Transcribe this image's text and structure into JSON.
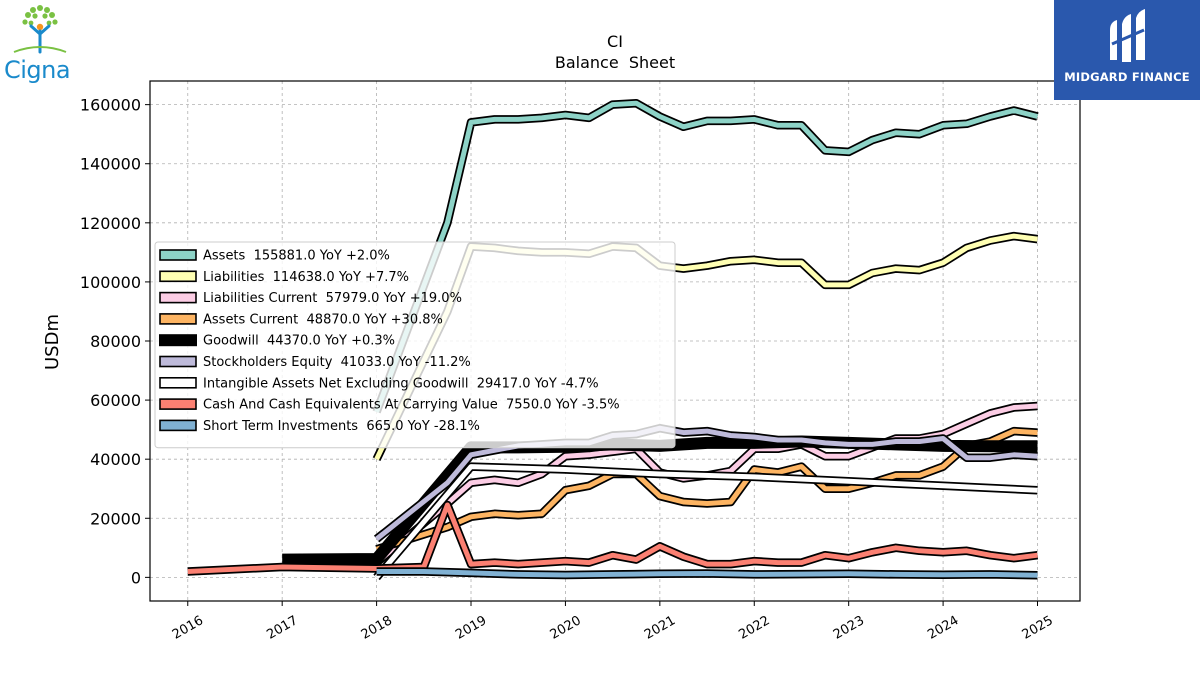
{
  "logos": {
    "left": {
      "text": "Cigna"
    },
    "right": {
      "text": "MIDGARD FINANCE"
    }
  },
  "chart_data": {
    "type": "line",
    "title": "CI",
    "subtitle": "Balance  Sheet",
    "xlabel": "",
    "ylabel": "USDm",
    "xlim": [
      2015.6,
      2025.45
    ],
    "ylim": [
      -8000,
      168000
    ],
    "xticks": [
      2016,
      2017,
      2018,
      2019,
      2020,
      2021,
      2022,
      2023,
      2024,
      2025
    ],
    "yticks": [
      0,
      20000,
      40000,
      60000,
      80000,
      100000,
      120000,
      140000,
      160000
    ],
    "grid": true,
    "legend_position": "center-left",
    "series": [
      {
        "name": "Assets",
        "legend": "Assets  155881.0 YoY +2.0%",
        "color": "#8dd3c7",
        "points": [
          [
            2018.0,
            56000
          ],
          [
            2018.75,
            120000
          ],
          [
            2019.0,
            154000
          ],
          [
            2019.25,
            155000
          ],
          [
            2019.5,
            155000
          ],
          [
            2019.75,
            155500
          ],
          [
            2020.0,
            156500
          ],
          [
            2020.25,
            155500
          ],
          [
            2020.5,
            160000
          ],
          [
            2020.75,
            160500
          ],
          [
            2021.0,
            156000
          ],
          [
            2021.25,
            152500
          ],
          [
            2021.5,
            154500
          ],
          [
            2021.75,
            154500
          ],
          [
            2022.0,
            155000
          ],
          [
            2022.25,
            153000
          ],
          [
            2022.5,
            153000
          ],
          [
            2022.75,
            144500
          ],
          [
            2023.0,
            144000
          ],
          [
            2023.25,
            148000
          ],
          [
            2023.5,
            150500
          ],
          [
            2023.75,
            150000
          ],
          [
            2024.0,
            153000
          ],
          [
            2024.25,
            153500
          ],
          [
            2024.5,
            156000
          ],
          [
            2024.75,
            158000
          ],
          [
            2025.0,
            156000
          ]
        ]
      },
      {
        "name": "Liabilities",
        "legend": "Liabilities  114638.0 YoY +7.7%",
        "color": "#ffffb3",
        "points": [
          [
            2018.0,
            40000
          ],
          [
            2018.75,
            90000
          ],
          [
            2019.0,
            112000
          ],
          [
            2019.25,
            111500
          ],
          [
            2019.5,
            110500
          ],
          [
            2019.75,
            110000
          ],
          [
            2020.0,
            110000
          ],
          [
            2020.25,
            109500
          ],
          [
            2020.5,
            112000
          ],
          [
            2020.75,
            111500
          ],
          [
            2021.0,
            105500
          ],
          [
            2021.25,
            104500
          ],
          [
            2021.5,
            105500
          ],
          [
            2021.75,
            107000
          ],
          [
            2022.0,
            107500
          ],
          [
            2022.25,
            106500
          ],
          [
            2022.5,
            106500
          ],
          [
            2022.75,
            99000
          ],
          [
            2023.0,
            99000
          ],
          [
            2023.25,
            103000
          ],
          [
            2023.5,
            104500
          ],
          [
            2023.75,
            104000
          ],
          [
            2024.0,
            106500
          ],
          [
            2024.25,
            111500
          ],
          [
            2024.5,
            114000
          ],
          [
            2024.75,
            115500
          ],
          [
            2025.0,
            114500
          ]
        ]
      },
      {
        "name": "Liabilities Current",
        "legend": "Liabilities Current  57979.0 YoY +19.0%",
        "color": "#fccde5",
        "points": [
          [
            2018.0,
            5000
          ],
          [
            2018.75,
            25000
          ],
          [
            2019.0,
            32000
          ],
          [
            2019.25,
            33000
          ],
          [
            2019.5,
            32000
          ],
          [
            2019.75,
            35000
          ],
          [
            2020.0,
            41000
          ],
          [
            2020.25,
            41500
          ],
          [
            2020.5,
            42500
          ],
          [
            2020.75,
            43500
          ],
          [
            2021.0,
            35500
          ],
          [
            2021.25,
            33500
          ],
          [
            2021.5,
            34500
          ],
          [
            2021.75,
            36000
          ],
          [
            2022.0,
            43500
          ],
          [
            2022.25,
            43500
          ],
          [
            2022.5,
            45000
          ],
          [
            2022.75,
            41000
          ],
          [
            2023.0,
            41000
          ],
          [
            2023.25,
            44000
          ],
          [
            2023.5,
            47000
          ],
          [
            2023.75,
            47000
          ],
          [
            2024.0,
            48500
          ],
          [
            2024.25,
            52000
          ],
          [
            2024.5,
            55500
          ],
          [
            2024.75,
            57500
          ],
          [
            2025.0,
            58000
          ]
        ]
      },
      {
        "name": "Assets Current",
        "legend": "Assets Current  48870.0 YoY +30.8%",
        "color": "#fdb462",
        "points": [
          [
            2018.0,
            9500
          ],
          [
            2018.75,
            17000
          ],
          [
            2019.0,
            20500
          ],
          [
            2019.25,
            21500
          ],
          [
            2019.5,
            21000
          ],
          [
            2019.75,
            21500
          ],
          [
            2020.0,
            29500
          ],
          [
            2020.25,
            31000
          ],
          [
            2020.5,
            35000
          ],
          [
            2020.75,
            35000
          ],
          [
            2021.0,
            27500
          ],
          [
            2021.25,
            25500
          ],
          [
            2021.5,
            25000
          ],
          [
            2021.75,
            25500
          ],
          [
            2022.0,
            36500
          ],
          [
            2022.25,
            35500
          ],
          [
            2022.5,
            37500
          ],
          [
            2022.75,
            30000
          ],
          [
            2023.0,
            30000
          ],
          [
            2023.25,
            32000
          ],
          [
            2023.5,
            34500
          ],
          [
            2023.75,
            34500
          ],
          [
            2024.0,
            37500
          ],
          [
            2024.25,
            44500
          ],
          [
            2024.5,
            46000
          ],
          [
            2024.75,
            49500
          ],
          [
            2025.0,
            49000
          ]
        ]
      },
      {
        "name": "Goodwill",
        "legend": "Goodwill  44370.0 YoY +0.3%",
        "color": "#000000",
        "points": [
          [
            2017.0,
            6000
          ],
          [
            2018.0,
            6200
          ],
          [
            2019.0,
            44000
          ],
          [
            2019.5,
            44000
          ],
          [
            2020.0,
            44200
          ],
          [
            2020.5,
            45000
          ],
          [
            2021.0,
            44500
          ],
          [
            2021.5,
            45500
          ],
          [
            2022.0,
            45500
          ],
          [
            2022.5,
            46000
          ],
          [
            2023.0,
            45500
          ],
          [
            2023.5,
            45000
          ],
          [
            2024.0,
            44500
          ],
          [
            2024.5,
            44400
          ],
          [
            2025.0,
            44400
          ]
        ]
      },
      {
        "name": "Stockholders Equity",
        "legend": "Stockholders Equity  41033.0 YoY -11.2%",
        "color": "#bebada",
        "points": [
          [
            2018.0,
            13000
          ],
          [
            2018.75,
            32000
          ],
          [
            2019.0,
            41500
          ],
          [
            2019.25,
            43000
          ],
          [
            2019.5,
            44500
          ],
          [
            2019.75,
            45000
          ],
          [
            2020.0,
            45500
          ],
          [
            2020.25,
            45500
          ],
          [
            2020.5,
            48000
          ],
          [
            2020.75,
            48500
          ],
          [
            2021.0,
            50500
          ],
          [
            2021.25,
            49000
          ],
          [
            2021.5,
            49500
          ],
          [
            2021.75,
            48000
          ],
          [
            2022.0,
            47500
          ],
          [
            2022.25,
            46500
          ],
          [
            2022.5,
            46500
          ],
          [
            2022.75,
            45500
          ],
          [
            2023.0,
            45000
          ],
          [
            2023.25,
            45000
          ],
          [
            2023.5,
            46000
          ],
          [
            2023.75,
            46000
          ],
          [
            2024.0,
            47000
          ],
          [
            2024.25,
            40500
          ],
          [
            2024.5,
            40500
          ],
          [
            2024.75,
            41500
          ],
          [
            2025.0,
            41000
          ]
        ]
      },
      {
        "name": "Intangible Assets Net Excluding Goodwill",
        "legend": "Intangible Assets Net Excluding Goodwill  29417.0 YoY -4.7%",
        "color": "#ffffff",
        "points": [
          [
            2018.0,
            0
          ],
          [
            2019.0,
            37500
          ],
          [
            2020.0,
            36500
          ],
          [
            2021.0,
            35000
          ],
          [
            2022.0,
            34000
          ],
          [
            2023.0,
            32500
          ],
          [
            2024.0,
            31000
          ],
          [
            2025.0,
            29500
          ]
        ]
      },
      {
        "name": "Cash And Cash Equivalents At Carrying Value",
        "legend": "Cash And Cash Equivalents At Carrying Value  7550.0 YoY -3.5%",
        "color": "#fb8072",
        "points": [
          [
            2016.0,
            2000
          ],
          [
            2017.0,
            3500
          ],
          [
            2018.0,
            3000
          ],
          [
            2018.5,
            3500
          ],
          [
            2018.75,
            24500
          ],
          [
            2019.0,
            4500
          ],
          [
            2019.25,
            5000
          ],
          [
            2019.5,
            4500
          ],
          [
            2019.75,
            5000
          ],
          [
            2020.0,
            5500
          ],
          [
            2020.25,
            5000
          ],
          [
            2020.5,
            7500
          ],
          [
            2020.75,
            6000
          ],
          [
            2021.0,
            10500
          ],
          [
            2021.25,
            7000
          ],
          [
            2021.5,
            4500
          ],
          [
            2021.75,
            4500
          ],
          [
            2022.0,
            5500
          ],
          [
            2022.25,
            5000
          ],
          [
            2022.5,
            5000
          ],
          [
            2022.75,
            7500
          ],
          [
            2023.0,
            6500
          ],
          [
            2023.25,
            8500
          ],
          [
            2023.5,
            10000
          ],
          [
            2023.75,
            9000
          ],
          [
            2024.0,
            8500
          ],
          [
            2024.25,
            9000
          ],
          [
            2024.5,
            7500
          ],
          [
            2024.75,
            6500
          ],
          [
            2025.0,
            7500
          ]
        ]
      },
      {
        "name": "Short Term Investments",
        "legend": "Short Term Investments  665.0 YoY -28.1%",
        "color": "#80b1d3",
        "points": [
          [
            2018.0,
            2000
          ],
          [
            2018.5,
            2000
          ],
          [
            2019.0,
            1500
          ],
          [
            2019.5,
            1000
          ],
          [
            2020.0,
            800
          ],
          [
            2020.5,
            1000
          ],
          [
            2021.0,
            1200
          ],
          [
            2021.5,
            1300
          ],
          [
            2022.0,
            1000
          ],
          [
            2022.5,
            1100
          ],
          [
            2023.0,
            1200
          ],
          [
            2023.5,
            1000
          ],
          [
            2024.0,
            900
          ],
          [
            2024.5,
            1000
          ],
          [
            2025.0,
            700
          ]
        ]
      }
    ]
  }
}
